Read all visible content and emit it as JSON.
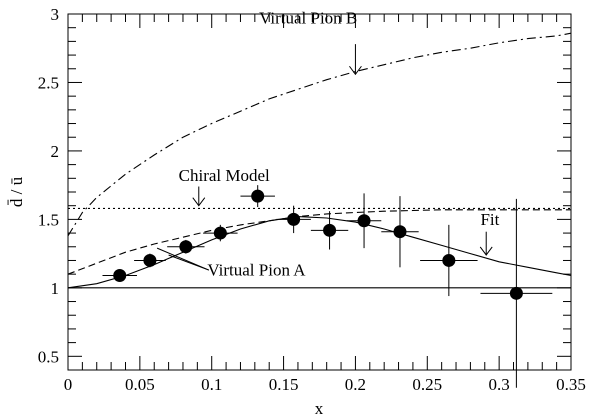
{
  "chart_data": {
    "type": "scatter",
    "title": "",
    "xlabel": "x",
    "ylabel": "d̄ / ū",
    "xlim": [
      0,
      0.35
    ],
    "ylim": [
      0.4,
      3.0
    ],
    "grid": false,
    "x_ticks": [
      0,
      0.05,
      0.1,
      0.15,
      0.2,
      0.25,
      0.3,
      0.35
    ],
    "x_tick_labels": [
      "0",
      "0.05",
      "0.1",
      "0.15",
      "0.2",
      "0.25",
      "0.3",
      "0.35"
    ],
    "y_ticks": [
      0.5,
      1,
      1.5,
      2,
      2.5,
      3
    ],
    "y_tick_labels": [
      "0.5",
      "1",
      "1.5",
      "2",
      "2.5",
      "3"
    ],
    "data_points": [
      {
        "x": 0.036,
        "y": 1.09,
        "xerr": 0.012,
        "yerr": 0.04
      },
      {
        "x": 0.057,
        "y": 1.2,
        "xerr": 0.011,
        "yerr": 0.05
      },
      {
        "x": 0.082,
        "y": 1.3,
        "xerr": 0.013,
        "yerr": 0.05
      },
      {
        "x": 0.106,
        "y": 1.4,
        "xerr": 0.012,
        "yerr": 0.06
      },
      {
        "x": 0.132,
        "y": 1.67,
        "xerr": 0.012,
        "yerr": 0.08
      },
      {
        "x": 0.157,
        "y": 1.5,
        "xerr": 0.012,
        "yerr": 0.1
      },
      {
        "x": 0.182,
        "y": 1.42,
        "xerr": 0.013,
        "yerr": 0.14
      },
      {
        "x": 0.206,
        "y": 1.49,
        "xerr": 0.012,
        "yerr": 0.2
      },
      {
        "x": 0.231,
        "y": 1.41,
        "xerr": 0.013,
        "yerr": 0.26
      },
      {
        "x": 0.265,
        "y": 1.2,
        "xerr": 0.02,
        "yerr": 0.26
      },
      {
        "x": 0.312,
        "y": 0.96,
        "xerr": 0.025,
        "yerr": 0.69
      }
    ],
    "series": [
      {
        "name": "Fit",
        "style": "solid",
        "x": [
          0,
          0.02,
          0.04,
          0.06,
          0.08,
          0.1,
          0.12,
          0.14,
          0.16,
          0.18,
          0.2,
          0.22,
          0.24,
          0.26,
          0.28,
          0.3,
          0.32,
          0.34,
          0.35
        ],
        "y": [
          1.0,
          1.03,
          1.09,
          1.17,
          1.26,
          1.35,
          1.43,
          1.49,
          1.52,
          1.51,
          1.48,
          1.43,
          1.37,
          1.31,
          1.25,
          1.19,
          1.15,
          1.11,
          1.09
        ]
      },
      {
        "name": "Virtual Pion A",
        "style": "dashed",
        "x": [
          0,
          0.02,
          0.04,
          0.06,
          0.08,
          0.1,
          0.12,
          0.14,
          0.16,
          0.18,
          0.2,
          0.22,
          0.24,
          0.26,
          0.28,
          0.3,
          0.32,
          0.34,
          0.35
        ],
        "y": [
          1.1,
          1.18,
          1.26,
          1.32,
          1.37,
          1.42,
          1.46,
          1.49,
          1.52,
          1.54,
          1.55,
          1.56,
          1.565,
          1.57,
          1.57,
          1.57,
          1.57,
          1.57,
          1.57
        ]
      },
      {
        "name": "Virtual Pion B",
        "style": "dash-dot",
        "x": [
          0,
          0.01,
          0.02,
          0.04,
          0.06,
          0.08,
          0.1,
          0.12,
          0.14,
          0.16,
          0.18,
          0.2,
          0.22,
          0.24,
          0.26,
          0.28,
          0.3,
          0.32,
          0.34,
          0.35
        ],
        "y": [
          1.38,
          1.55,
          1.66,
          1.83,
          1.97,
          2.1,
          2.2,
          2.29,
          2.38,
          2.45,
          2.52,
          2.58,
          2.63,
          2.68,
          2.72,
          2.75,
          2.79,
          2.82,
          2.84,
          2.86
        ]
      },
      {
        "name": "Chiral Model",
        "style": "dotted",
        "x": [
          0,
          0.35
        ],
        "y": [
          1.58,
          1.58
        ]
      },
      {
        "name": "",
        "style": "solid",
        "x": [
          0,
          0.35
        ],
        "y": [
          1.0,
          1.0
        ]
      }
    ],
    "annotations": [
      {
        "text": "Virtual Pion B",
        "x": 0.133,
        "y": 2.93
      },
      {
        "text": "Chiral Model",
        "x": 0.077,
        "y": 1.78
      },
      {
        "text": "Virtual Pion A",
        "x": 0.097,
        "y": 1.09
      },
      {
        "text": "Fit",
        "x": 0.287,
        "y": 1.46
      }
    ],
    "arrows": [
      {
        "x": 0.2,
        "y_from": 2.78,
        "y_to": 2.56
      },
      {
        "x": 0.091,
        "y_from": 1.74,
        "y_to": 1.6
      },
      {
        "x": 0.291,
        "y_from": 1.41,
        "y_to": 1.24
      }
    ],
    "pointer_lines": [
      {
        "x1": 0.098,
        "y1": 1.13,
        "x2": 0.062,
        "y2": 1.29
      },
      {
        "x1": 0.098,
        "y1": 1.13,
        "x2": 0.07,
        "y2": 1.24
      }
    ]
  }
}
